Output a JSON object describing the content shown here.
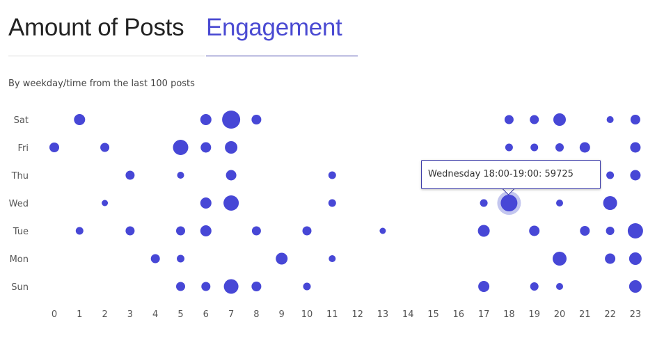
{
  "tabs": {
    "posts_label": "Amount of Posts",
    "engagement_label": "Engagement",
    "active": "engagement"
  },
  "subtitle": "By weekday/time from the last 100 posts",
  "tooltip": {
    "text": "Wednesday 18:00-19:00: 59725"
  },
  "colors": {
    "dot": "#4747d6",
    "highlight_ring": "#c3c6ef",
    "axis_text": "#555555"
  },
  "chart_data": {
    "type": "scatter",
    "title": "",
    "xlabel": "",
    "ylabel": "",
    "x_ticks": [
      0,
      1,
      2,
      3,
      4,
      5,
      6,
      7,
      8,
      9,
      10,
      11,
      12,
      13,
      14,
      15,
      16,
      17,
      18,
      19,
      20,
      21,
      22,
      23
    ],
    "y_categories": [
      "Sun",
      "Mon",
      "Tue",
      "Wed",
      "Thu",
      "Fri",
      "Sat"
    ],
    "size_scale": "relative engagement (1 = smallest dot, 10 = largest dot)",
    "points": [
      {
        "day": "Sat",
        "hour": 1,
        "size": 5
      },
      {
        "day": "Sat",
        "hour": 6,
        "size": 5
      },
      {
        "day": "Sat",
        "hour": 7,
        "size": 10
      },
      {
        "day": "Sat",
        "hour": 8,
        "size": 4
      },
      {
        "day": "Sat",
        "hour": 18,
        "size": 3.5
      },
      {
        "day": "Sat",
        "hour": 19,
        "size": 3.5
      },
      {
        "day": "Sat",
        "hour": 20,
        "size": 6
      },
      {
        "day": "Sat",
        "hour": 22,
        "size": 2
      },
      {
        "day": "Sat",
        "hour": 23,
        "size": 4
      },
      {
        "day": "Fri",
        "hour": 0,
        "size": 4
      },
      {
        "day": "Fri",
        "hour": 2,
        "size": 3.5
      },
      {
        "day": "Fri",
        "hour": 5,
        "size": 8
      },
      {
        "day": "Fri",
        "hour": 6,
        "size": 4.5
      },
      {
        "day": "Fri",
        "hour": 7,
        "size": 6
      },
      {
        "day": "Fri",
        "hour": 18,
        "size": 2.5
      },
      {
        "day": "Fri",
        "hour": 19,
        "size": 2.5
      },
      {
        "day": "Fri",
        "hour": 20,
        "size": 3
      },
      {
        "day": "Fri",
        "hour": 21,
        "size": 4.5
      },
      {
        "day": "Fri",
        "hour": 23,
        "size": 4.5
      },
      {
        "day": "Thu",
        "hour": 3,
        "size": 3.5
      },
      {
        "day": "Thu",
        "hour": 5,
        "size": 2
      },
      {
        "day": "Thu",
        "hour": 7,
        "size": 4.5
      },
      {
        "day": "Thu",
        "hour": 11,
        "size": 2.5
      },
      {
        "day": "Thu",
        "hour": 22,
        "size": 2.5
      },
      {
        "day": "Thu",
        "hour": 23,
        "size": 4.5
      },
      {
        "day": "Wed",
        "hour": 2,
        "size": 1.5
      },
      {
        "day": "Wed",
        "hour": 6,
        "size": 5
      },
      {
        "day": "Wed",
        "hour": 7,
        "size": 8
      },
      {
        "day": "Wed",
        "hour": 11,
        "size": 2.5
      },
      {
        "day": "Wed",
        "hour": 17,
        "size": 2.5
      },
      {
        "day": "Wed",
        "hour": 18,
        "size": 9,
        "highlighted": true,
        "value": 59725
      },
      {
        "day": "Wed",
        "hour": 20,
        "size": 2
      },
      {
        "day": "Wed",
        "hour": 22,
        "size": 7
      },
      {
        "day": "Tue",
        "hour": 1,
        "size": 2.5
      },
      {
        "day": "Tue",
        "hour": 3,
        "size": 3.5
      },
      {
        "day": "Tue",
        "hour": 5,
        "size": 3.5
      },
      {
        "day": "Tue",
        "hour": 6,
        "size": 5
      },
      {
        "day": "Tue",
        "hour": 8,
        "size": 3.5
      },
      {
        "day": "Tue",
        "hour": 10,
        "size": 3.5
      },
      {
        "day": "Tue",
        "hour": 13,
        "size": 1.5
      },
      {
        "day": "Tue",
        "hour": 17,
        "size": 5.5
      },
      {
        "day": "Tue",
        "hour": 19,
        "size": 4.5
      },
      {
        "day": "Tue",
        "hour": 21,
        "size": 4
      },
      {
        "day": "Tue",
        "hour": 22,
        "size": 3
      },
      {
        "day": "Tue",
        "hour": 23,
        "size": 8
      },
      {
        "day": "Mon",
        "hour": 4,
        "size": 3.5
      },
      {
        "day": "Mon",
        "hour": 5,
        "size": 2.5
      },
      {
        "day": "Mon",
        "hour": 9,
        "size": 5.5
      },
      {
        "day": "Mon",
        "hour": 11,
        "size": 2
      },
      {
        "day": "Mon",
        "hour": 20,
        "size": 7
      },
      {
        "day": "Mon",
        "hour": 22,
        "size": 4.5
      },
      {
        "day": "Mon",
        "hour": 23,
        "size": 6
      },
      {
        "day": "Sun",
        "hour": 5,
        "size": 3.5
      },
      {
        "day": "Sun",
        "hour": 6,
        "size": 3.5
      },
      {
        "day": "Sun",
        "hour": 7,
        "size": 7.5
      },
      {
        "day": "Sun",
        "hour": 8,
        "size": 4
      },
      {
        "day": "Sun",
        "hour": 10,
        "size": 2.5
      },
      {
        "day": "Sun",
        "hour": 17,
        "size": 5
      },
      {
        "day": "Sun",
        "hour": 19,
        "size": 3
      },
      {
        "day": "Sun",
        "hour": 20,
        "size": 2
      },
      {
        "day": "Sun",
        "hour": 23,
        "size": 6
      }
    ]
  }
}
